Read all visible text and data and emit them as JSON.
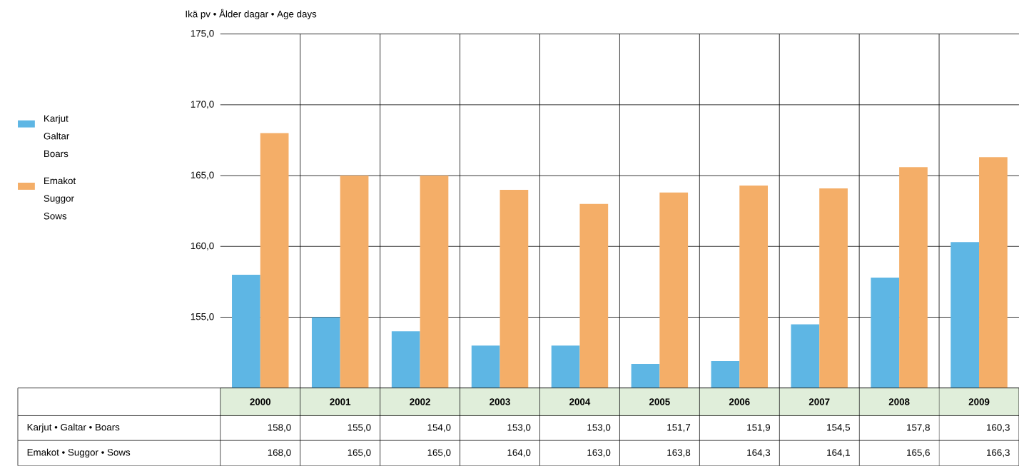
{
  "chart_data": {
    "type": "bar",
    "ylabel": "Ikä pv • Ålder dagar • Age days",
    "categories": [
      "2000",
      "2001",
      "2002",
      "2003",
      "2004",
      "2005",
      "2006",
      "2007",
      "2008",
      "2009"
    ],
    "series": [
      {
        "name": "Karjut Galtar Boars",
        "color": "#5eb6e4",
        "values": [
          158.0,
          155.0,
          154.0,
          153.0,
          153.0,
          151.7,
          151.9,
          154.5,
          157.8,
          160.3
        ],
        "value_labels": [
          "158,0",
          "155,0",
          "154,0",
          "153,0",
          "153,0",
          "151,7",
          "151,9",
          "154,5",
          "157,8",
          "160,3"
        ]
      },
      {
        "name": "Emakot Suggor Sows",
        "color": "#f4ae68",
        "values": [
          168.0,
          165.0,
          165.0,
          164.0,
          163.0,
          163.8,
          164.3,
          164.1,
          165.6,
          166.3
        ],
        "value_labels": [
          "168,0",
          "165,0",
          "165,0",
          "164,0",
          "163,0",
          "163,8",
          "164,3",
          "164,1",
          "165,6",
          "166,3"
        ]
      }
    ],
    "annotations": [
      "Karjut • Galtar • Boars",
      "Emakot • Suggor • Sows"
    ],
    "ylim": [
      150,
      175
    ],
    "yticks": [
      {
        "value": 150,
        "label": null
      },
      {
        "value": 155,
        "label": "155,0"
      },
      {
        "value": 160,
        "label": "160,0"
      },
      {
        "value": 165,
        "label": "165,0"
      },
      {
        "value": 170,
        "label": "170,0"
      },
      {
        "value": 175,
        "label": "175,0"
      }
    ],
    "grid": true,
    "legend": "left"
  }
}
